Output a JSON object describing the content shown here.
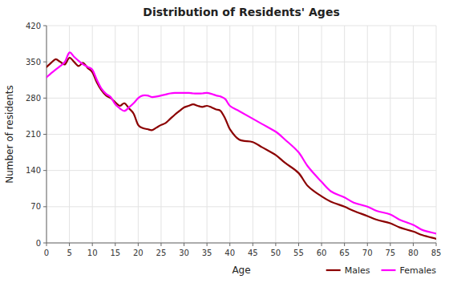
{
  "chart_data": {
    "type": "line",
    "title": "Distribution of Residents' Ages",
    "xlabel": "Age",
    "ylabel": "Number of residents",
    "x": [
      0,
      1,
      2,
      3,
      4,
      5,
      6,
      7,
      8,
      9,
      10,
      11,
      12,
      13,
      14,
      15,
      16,
      17,
      18,
      19,
      20,
      21,
      22,
      23,
      24,
      25,
      26,
      27,
      28,
      29,
      30,
      31,
      32,
      33,
      34,
      35,
      36,
      37,
      38,
      39,
      40,
      42,
      45,
      47,
      50,
      52,
      55,
      57,
      60,
      62,
      65,
      67,
      70,
      72,
      75,
      77,
      80,
      82,
      85
    ],
    "series": [
      {
        "name": "Males",
        "color": "#8B0000",
        "values": [
          340,
          348,
          355,
          350,
          345,
          358,
          350,
          342,
          348,
          338,
          330,
          310,
          295,
          285,
          280,
          272,
          265,
          270,
          260,
          250,
          228,
          222,
          220,
          218,
          223,
          228,
          232,
          240,
          248,
          255,
          262,
          265,
          268,
          265,
          263,
          265,
          262,
          258,
          255,
          240,
          220,
          200,
          195,
          185,
          170,
          155,
          135,
          110,
          90,
          80,
          70,
          62,
          52,
          45,
          38,
          30,
          22,
          15,
          8
        ]
      },
      {
        "name": "Females",
        "color": "#FF00FF",
        "values": [
          320,
          328,
          335,
          342,
          350,
          368,
          360,
          352,
          345,
          340,
          335,
          315,
          298,
          288,
          282,
          268,
          260,
          255,
          262,
          270,
          280,
          285,
          285,
          282,
          283,
          285,
          287,
          289,
          290,
          290,
          290,
          290,
          289,
          289,
          289,
          290,
          288,
          285,
          283,
          278,
          265,
          255,
          240,
          230,
          215,
          200,
          175,
          148,
          118,
          100,
          88,
          78,
          70,
          62,
          55,
          45,
          35,
          25,
          18
        ]
      }
    ],
    "xlim": [
      0,
      85
    ],
    "xticks": [
      0,
      5,
      10,
      15,
      20,
      25,
      30,
      35,
      40,
      45,
      50,
      55,
      60,
      65,
      70,
      75,
      80,
      85
    ],
    "ylim": [
      0,
      420
    ],
    "yticks": [
      0,
      70,
      140,
      210,
      280,
      350,
      420
    ],
    "grid": true,
    "legend": "lower right"
  }
}
